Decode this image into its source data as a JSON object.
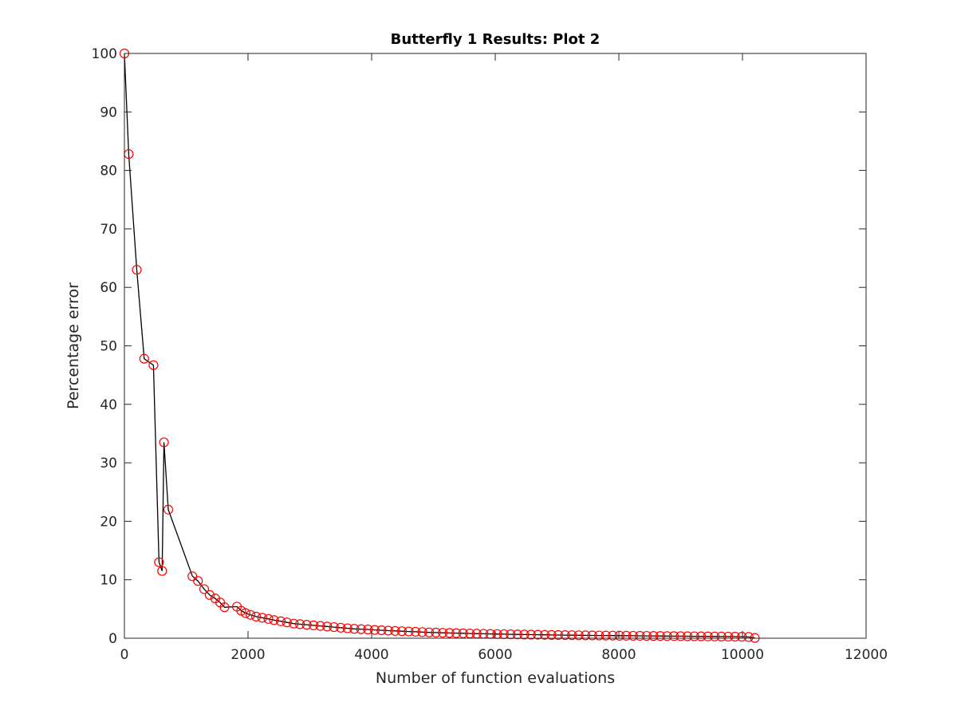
{
  "chart_data": {
    "type": "line",
    "title": "Butterfly 1 Results: Plot 2",
    "xlabel": "Number of function evaluations",
    "ylabel": "Percentage error",
    "xlim": [
      0,
      12000
    ],
    "ylim": [
      0,
      100
    ],
    "xticks": [
      0,
      2000,
      4000,
      6000,
      8000,
      10000,
      12000
    ],
    "yticks": [
      0,
      10,
      20,
      30,
      40,
      50,
      60,
      70,
      80,
      90,
      100
    ],
    "grid": false,
    "legend": "none",
    "line_color": "#000000",
    "marker": "circle",
    "marker_color": "#ff0000",
    "x": [
      0,
      70,
      200,
      320,
      470,
      560,
      610,
      640,
      710,
      1100,
      1190,
      1290,
      1380,
      1470,
      1550,
      1620,
      1820,
      1890,
      1960,
      2040,
      2130,
      2230,
      2330,
      2420,
      2530,
      2630,
      2740,
      2840,
      2950,
      3060,
      3170,
      3280,
      3390,
      3500,
      3610,
      3720,
      3830,
      3940,
      4050,
      4160,
      4270,
      4380,
      4490,
      4600,
      4710,
      4820,
      4930,
      5040,
      5150,
      5260,
      5370,
      5480,
      5590,
      5700,
      5810,
      5920,
      6030,
      6140,
      6250,
      6360,
      6470,
      6580,
      6690,
      6800,
      6910,
      7020,
      7130,
      7240,
      7350,
      7460,
      7570,
      7680,
      7790,
      7900,
      8010,
      8120,
      8230,
      8340,
      8450,
      8560,
      8670,
      8780,
      8890,
      9000,
      9110,
      9220,
      9330,
      9440,
      9550,
      9660,
      9770,
      9880,
      9990,
      10100,
      10200
    ],
    "y": [
      100,
      82.8,
      63,
      47.8,
      46.7,
      13,
      11.5,
      33.5,
      22,
      10.6,
      9.8,
      8.4,
      7.4,
      6.8,
      6.1,
      5.3,
      5.4,
      4.7,
      4.3,
      4.0,
      3.7,
      3.5,
      3.3,
      3.1,
      2.9,
      2.7,
      2.5,
      2.4,
      2.3,
      2.2,
      2.1,
      2.0,
      1.9,
      1.8,
      1.7,
      1.6,
      1.55,
      1.5,
      1.42,
      1.36,
      1.3,
      1.25,
      1.2,
      1.15,
      1.1,
      1.05,
      1.0,
      0.97,
      0.93,
      0.9,
      0.87,
      0.84,
      0.81,
      0.78,
      0.76,
      0.73,
      0.71,
      0.69,
      0.67,
      0.65,
      0.63,
      0.61,
      0.6,
      0.58,
      0.56,
      0.55,
      0.53,
      0.52,
      0.5,
      0.49,
      0.48,
      0.47,
      0.46,
      0.45,
      0.44,
      0.43,
      0.42,
      0.41,
      0.4,
      0.39,
      0.38,
      0.37,
      0.36,
      0.35,
      0.34,
      0.33,
      0.32,
      0.31,
      0.3,
      0.29,
      0.28,
      0.27,
      0.26,
      0.22,
      0.05
    ]
  }
}
